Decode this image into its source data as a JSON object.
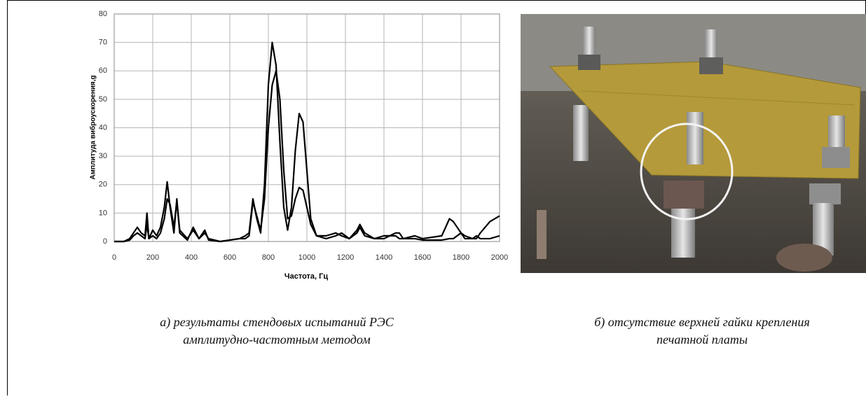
{
  "chart_data": {
    "type": "line",
    "x_label": "Частота, Гц",
    "y_label": "Амплитуда виброускорения,g",
    "x": [
      0,
      50,
      80,
      100,
      120,
      140,
      160,
      170,
      180,
      200,
      220,
      240,
      260,
      275,
      290,
      310,
      325,
      340,
      380,
      410,
      440,
      470,
      490,
      550,
      650,
      680,
      700,
      720,
      740,
      760,
      780,
      800,
      820,
      840,
      860,
      880,
      900,
      920,
      940,
      960,
      980,
      1000,
      1020,
      1050,
      1100,
      1150,
      1180,
      1220,
      1260,
      1275,
      1300,
      1350,
      1400,
      1430,
      1460,
      1480,
      1500,
      1560,
      1600,
      1700,
      1740,
      1760,
      1800,
      1820,
      1860,
      1880,
      1900,
      1950,
      2000
    ],
    "series": [
      {
        "color": "#000000",
        "values": [
          0,
          0,
          1,
          3,
          5,
          3,
          2,
          10,
          1,
          4,
          2,
          5,
          12,
          21,
          12,
          3,
          15,
          3,
          0.5,
          5,
          1,
          4,
          0.5,
          0,
          1,
          2,
          3,
          15,
          8,
          3,
          20,
          55,
          70,
          62,
          35,
          12,
          4,
          12,
          32,
          45,
          42,
          25,
          8,
          2,
          1,
          2,
          3,
          1,
          4,
          6,
          3,
          1,
          2,
          2,
          3,
          3,
          1,
          1,
          0.5,
          0.5,
          1,
          1,
          3,
          1,
          1,
          2,
          1,
          1,
          2
        ]
      },
      {
        "color": "#000000",
        "values": [
          0,
          0,
          0.5,
          2,
          3,
          2,
          1,
          6,
          1,
          2,
          1,
          3,
          8,
          15,
          13,
          5,
          14,
          4,
          1,
          4,
          1,
          3,
          1,
          0,
          1,
          1,
          2,
          14,
          9,
          4,
          15,
          40,
          55,
          60,
          50,
          25,
          8,
          9,
          15,
          19,
          18,
          12,
          6,
          2,
          2,
          3,
          2,
          1,
          3,
          5,
          2,
          1,
          1,
          2,
          2,
          1,
          1,
          2,
          1,
          2,
          8,
          7,
          3,
          2,
          1,
          1,
          3,
          7,
          9
        ]
      }
    ],
    "xlim": [
      0,
      2000
    ],
    "xticks": [
      0,
      200,
      400,
      600,
      800,
      1000,
      1200,
      1400,
      1600,
      1800,
      2000
    ],
    "ylim": [
      0,
      80
    ],
    "yticks": [
      0,
      10,
      20,
      30,
      40,
      50,
      60,
      70,
      80
    ],
    "grid": true
  },
  "captions": {
    "a": [
      "а) результаты стендовых испытаний РЭС",
      "амплитудно-частотным методом"
    ],
    "b": [
      "б) отсутствие верхней гайки крепления",
      "печатной платы"
    ]
  }
}
